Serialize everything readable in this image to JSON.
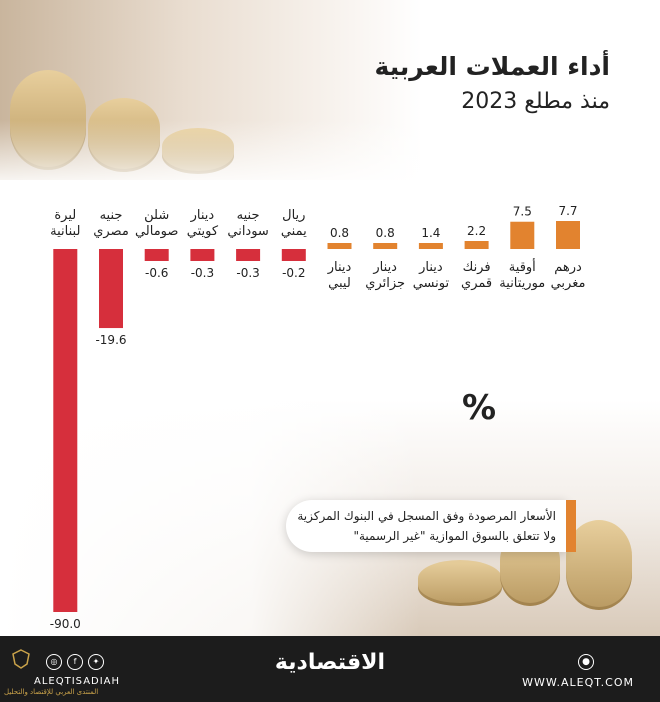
{
  "title": "أداء العملات العربية",
  "subtitle": "منذ مطلع  2023",
  "unit_symbol": "%",
  "note_lines": [
    "الأسعار المرصودة وفق المسجل في البنوك المركزية",
    "ولا تتعلق بالسوق الموازية \"غير الرسمية\""
  ],
  "footer": {
    "brand": "الاقتصادية",
    "website": "WWW.ALEQT.COM",
    "handle": "ALEQTISADIAH",
    "watermark": "المنتدى العربي للإقتصاد والتحليل"
  },
  "colors": {
    "positive_bar": "#e2832f",
    "negative_bar": "#d62f3c",
    "footer_bg": "#1c1c1c",
    "accent": "#e2832f"
  },
  "icons": [
    "globe-icon",
    "twitter-icon",
    "facebook-icon",
    "instagram-icon",
    "crest-logo-icon"
  ],
  "chart_data": {
    "type": "bar",
    "title": "أداء العملات العربية",
    "subtitle": "منذ مطلع  2023",
    "ylabel": "%",
    "ylim": [
      -90,
      8
    ],
    "grid": false,
    "categories": [
      [
        "درهم",
        "مغربي"
      ],
      [
        "أوقية",
        "موريتانية"
      ],
      [
        "فرنك",
        "قمري"
      ],
      [
        "دينار",
        "تونسي"
      ],
      [
        "دينار",
        "جزائري"
      ],
      [
        "دينار",
        "ليبي"
      ],
      [
        "ريال",
        "يمني"
      ],
      [
        "جنيه",
        "سوداني"
      ],
      [
        "دينار",
        "كويتي"
      ],
      [
        "شلن",
        "صومالي"
      ],
      [
        "جنيه",
        "مصري"
      ],
      [
        "ليرة",
        "لبنانية"
      ]
    ],
    "values": [
      7.7,
      7.5,
      2.2,
      1.4,
      0.8,
      0.8,
      -0.2,
      -0.3,
      -0.3,
      -0.6,
      -19.6,
      -90.0
    ],
    "value_labels": [
      "7.7",
      "7.5",
      "2.2",
      "1.4",
      "0.8",
      "0.8",
      "-0.2",
      "-0.3",
      "-0.3",
      "-0.6",
      "-19.6",
      "-90.0"
    ]
  }
}
